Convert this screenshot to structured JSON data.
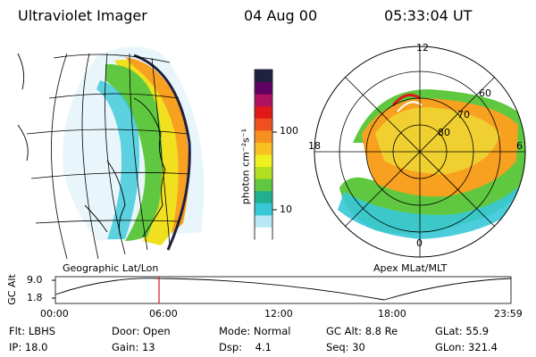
{
  "header": {
    "title": "Ultraviolet Imager",
    "date": "04 Aug 00",
    "time": "05:33:04 UT"
  },
  "colorbar": {
    "unit_label": "photon cm⁻²s⁻¹",
    "ticks": [
      "100",
      "10"
    ],
    "colors": [
      "#ffffff",
      "#b8e8f5",
      "#38c8d8",
      "#20b090",
      "#60c840",
      "#b0e020",
      "#f0f020",
      "#f8c020",
      "#f89020",
      "#f05020",
      "#e01818",
      "#b01060",
      "#600060",
      "#202040"
    ]
  },
  "globe": {
    "label": "Geographic Lat/Lon"
  },
  "polar": {
    "label": "Apex MLat/MLT",
    "mlt_labels": [
      "12",
      "18",
      "6",
      "0"
    ],
    "lat_labels": [
      "60",
      "70",
      "80"
    ]
  },
  "altitude_plot": {
    "ylabel": "GC Alt",
    "y_ticks": [
      "9.0",
      "1.8"
    ],
    "x_ticks": [
      "00:00",
      "06:00",
      "12:00",
      "18:00",
      "23:59"
    ],
    "marker_time": "05:33"
  },
  "info": {
    "flt_label": "Flt:",
    "flt_value": "LBHS",
    "ip_label": "IP:",
    "ip_value": "18.0",
    "door_label": "Door:",
    "door_value": "Open",
    "gain_label": "Gain:",
    "gain_value": "13",
    "mode_label": "Mode:",
    "mode_value": "Normal",
    "dsp_label": "Dsp:",
    "dsp_value": "4.1",
    "gcalt_label": "GC Alt:",
    "gcalt_value": "8.8 Re",
    "seq_label": "Seq:",
    "seq_value": "30",
    "glat_label": "GLat:",
    "glat_value": "55.9",
    "glon_label": "GLon:",
    "glon_value": "321.4"
  }
}
